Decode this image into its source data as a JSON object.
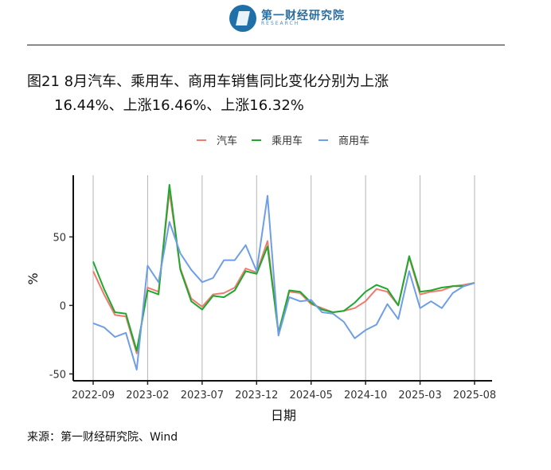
{
  "header": {
    "logo_cn": "第一财经研究院",
    "logo_en": "RESEARCH"
  },
  "title": {
    "line1": "图21 8月汽车、乘用车、商用车销售同比变化分别为上涨",
    "line2": "16.44%、上涨16.46%、上涨16.32%"
  },
  "source": "来源：第一财经研究院、Wind",
  "chart_data": {
    "type": "line",
    "xlabel": "日期",
    "ylabel": "%",
    "x": [
      "2022-09",
      "2022-10",
      "2022-11",
      "2022-12",
      "2023-01",
      "2023-02",
      "2023-03",
      "2023-04",
      "2023-05",
      "2023-06",
      "2023-07",
      "2023-08",
      "2023-09",
      "2023-10",
      "2023-11",
      "2023-12",
      "2024-01",
      "2024-02",
      "2024-03",
      "2024-04",
      "2024-05",
      "2024-06",
      "2024-07",
      "2024-08",
      "2024-09",
      "2024-10",
      "2024-11",
      "2024-12",
      "2025-01",
      "2025-02",
      "2025-03",
      "2025-04",
      "2025-05",
      "2025-06",
      "2025-07",
      "2025-08"
    ],
    "x_ticks": [
      "2022-09",
      "2023-02",
      "2023-07",
      "2023-12",
      "2024-05",
      "2024-10",
      "2025-03",
      "2025-08"
    ],
    "y_ticks": [
      -50,
      0,
      50
    ],
    "ylim": [
      -55,
      95
    ],
    "grid": "vertical lines at x ticks",
    "legend_position": "top",
    "series": [
      {
        "name": "汽车",
        "color": "#f07a70",
        "values": [
          25,
          8,
          -7,
          -8,
          -35,
          13,
          10,
          83,
          27,
          5,
          -1,
          8,
          9,
          13,
          27,
          24,
          47,
          -20,
          10,
          9,
          1,
          -2,
          -5,
          -4,
          -2,
          3,
          12,
          10,
          0,
          35,
          8,
          10,
          11,
          14,
          15,
          16.44
        ]
      },
      {
        "name": "乘用车",
        "color": "#1fa82e",
        "values": [
          32,
          12,
          -5,
          -6,
          -33,
          11,
          8,
          88,
          26,
          3,
          -3,
          7,
          6,
          11,
          25,
          23,
          43,
          -20,
          11,
          10,
          2,
          -3,
          -5,
          -4,
          2,
          10,
          15,
          12,
          0,
          36,
          10,
          11,
          13,
          14,
          14,
          16.46
        ]
      },
      {
        "name": "商用车",
        "color": "#6f9ee8",
        "values": [
          -13,
          -16,
          -23,
          -20,
          -47,
          29,
          17,
          61,
          38,
          26,
          17,
          20,
          33,
          33,
          44,
          25,
          80,
          -22,
          6,
          3,
          4,
          -5,
          -6,
          -12,
          -24,
          -18,
          -14,
          1,
          -10,
          25,
          -2,
          3,
          -2,
          9,
          14,
          16.32
        ]
      }
    ]
  }
}
